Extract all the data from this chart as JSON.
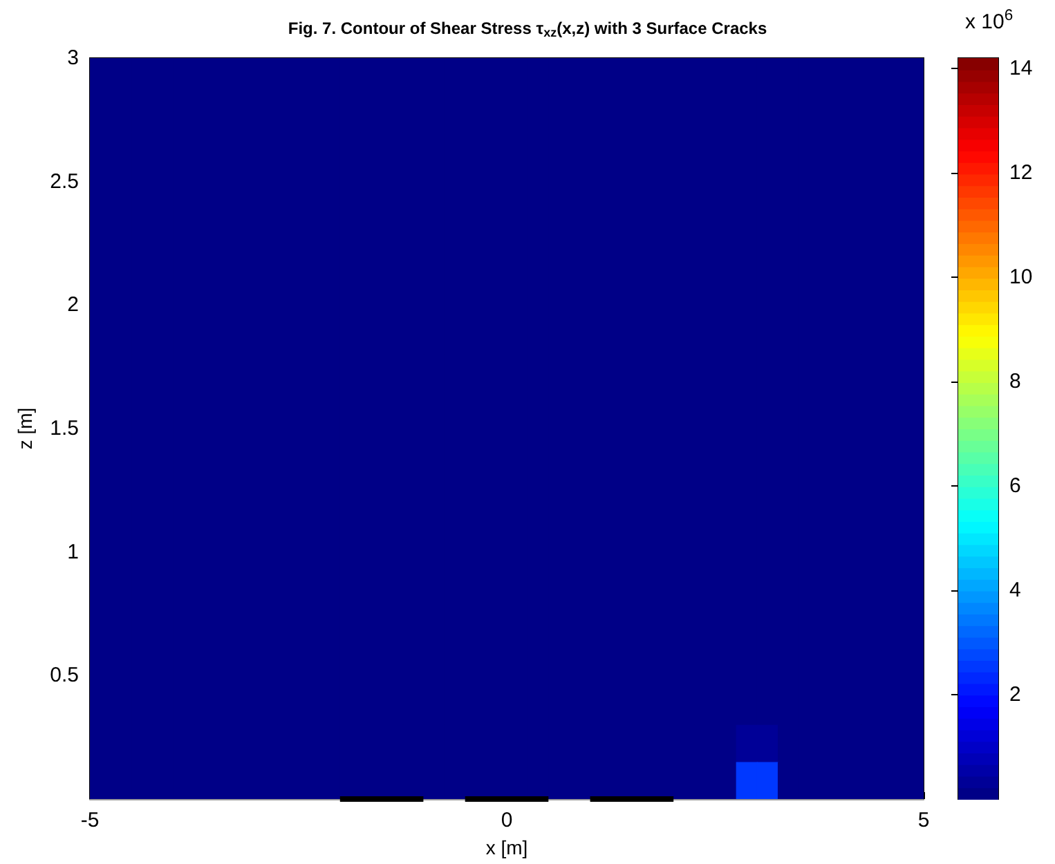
{
  "chart_data": {
    "type": "heatmap",
    "title": "Fig. 7. Contour of Shear Stress τ$_{xz}$(x,z) with 3 Surface Cracks",
    "xlabel": "x [m]",
    "ylabel": "z [m]",
    "clabel": "x 10$^{6}$",
    "xlim": [
      -5,
      5
    ],
    "xticks": [
      -5,
      0,
      5
    ],
    "ylim": [
      0,
      3
    ],
    "yticks": [
      0.5,
      1,
      1.5,
      2,
      2.5,
      3
    ],
    "clim": [
      0,
      14.2
    ],
    "cticks": [
      2,
      4,
      6,
      8,
      10,
      12,
      14
    ],
    "x": [
      -4.875,
      -4.625,
      -4.375,
      -4.125,
      -3.875,
      -3.625,
      -3.375,
      -3.125,
      -2.875,
      -2.625,
      -2.375,
      -2.125,
      -1.875,
      -1.625,
      -1.375,
      -1.125,
      -0.875,
      -0.625,
      -0.375,
      -0.125,
      0.125,
      0.375,
      0.625,
      0.875,
      1.125,
      1.375,
      1.625,
      1.875,
      2.125,
      2.375,
      2.625,
      2.875,
      3.125,
      3.375,
      3.625,
      3.875,
      4.125,
      4.375,
      4.625,
      4.875
    ],
    "y": [
      2.925,
      2.775,
      2.625,
      2.475,
      2.325,
      2.175,
      2.025,
      1.875,
      1.725,
      1.575,
      1.425,
      1.275,
      1.125,
      0.975,
      0.825,
      0.675,
      0.525,
      0.375,
      0.225,
      0.075
    ],
    "cells": [
      [
        0,
        0,
        0,
        0,
        0,
        0,
        0,
        0,
        0,
        0,
        0,
        0,
        0,
        0,
        0,
        0,
        0,
        0,
        0,
        0,
        0,
        0,
        0,
        0,
        0,
        0,
        0,
        0,
        0,
        0,
        0,
        0,
        0,
        0,
        0,
        0,
        0,
        0,
        0,
        0
      ],
      [
        0,
        0,
        0,
        0,
        0,
        0,
        0,
        0,
        0,
        0,
        0,
        0,
        0,
        0,
        0,
        0,
        0,
        0,
        0,
        0,
        0,
        0,
        0,
        0,
        0,
        0,
        0,
        0,
        0,
        0,
        0,
        0,
        0,
        0,
        0,
        0,
        0,
        0,
        0,
        0
      ],
      [
        0,
        0,
        0,
        0,
        0,
        0,
        0,
        0,
        0,
        0,
        0,
        0,
        0,
        0,
        0,
        0,
        0,
        0,
        0,
        0,
        0,
        0,
        0,
        0,
        0,
        0,
        0,
        0,
        0,
        0,
        0,
        0,
        0,
        0,
        0,
        0,
        0,
        0,
        0,
        0
      ],
      [
        0,
        0,
        0,
        0,
        0,
        0,
        0,
        0,
        0,
        0,
        0,
        0,
        0,
        0,
        0,
        0,
        0,
        0,
        0,
        0,
        0,
        0,
        0,
        0,
        0,
        0,
        0,
        0,
        0,
        0,
        0,
        0,
        0,
        0,
        0,
        0,
        0,
        0,
        0,
        0
      ],
      [
        0,
        0,
        0,
        0,
        0,
        0,
        0,
        0,
        0,
        0,
        0,
        0,
        0,
        0,
        0,
        0,
        0,
        0,
        0,
        0,
        0,
        0,
        0,
        0,
        0,
        0,
        0,
        0,
        0,
        0,
        0,
        0,
        0,
        0,
        0,
        0,
        0,
        0,
        0,
        0
      ],
      [
        0,
        0,
        0,
        0,
        0,
        0,
        0,
        0,
        0,
        0,
        0,
        0,
        0,
        0,
        0,
        0,
        0,
        0,
        0,
        0,
        0,
        0,
        0,
        0,
        0,
        0,
        0,
        0,
        0,
        0,
        0,
        0,
        0,
        0,
        0,
        0,
        0,
        0,
        0,
        0
      ],
      [
        0,
        0,
        0,
        0,
        0,
        0,
        0,
        0,
        0,
        0,
        0,
        0,
        0,
        0,
        0,
        0,
        0,
        0,
        0,
        0,
        0,
        0,
        0,
        0,
        0,
        0,
        0,
        0,
        0,
        0,
        0,
        0,
        0,
        0,
        0,
        0,
        0,
        0,
        0,
        0
      ],
      [
        0,
        0,
        0,
        0,
        0,
        0,
        0,
        0,
        0,
        0,
        0,
        0,
        0,
        0,
        0,
        0,
        0,
        0,
        0,
        0,
        0,
        0,
        0,
        0,
        0,
        0,
        0,
        0,
        0,
        0,
        0,
        0,
        0,
        0,
        0,
        0,
        0,
        0,
        0,
        0
      ],
      [
        0,
        0,
        0,
        0,
        0,
        0,
        0,
        0,
        0,
        0,
        0,
        0,
        0,
        0,
        0,
        0,
        0,
        0,
        0,
        0,
        0,
        0,
        0,
        0,
        0,
        0,
        0,
        0,
        0,
        0,
        0,
        0,
        0,
        0,
        0,
        0,
        0,
        0,
        0,
        0
      ],
      [
        0,
        0,
        0,
        0,
        0,
        0,
        0,
        0,
        0,
        0,
        0,
        0,
        0,
        0,
        0,
        0,
        0,
        0,
        0,
        0,
        0,
        0,
        0,
        0,
        0,
        0,
        0,
        0,
        0,
        0,
        0,
        0,
        0,
        0,
        0,
        0,
        0,
        0,
        0,
        0
      ],
      [
        0,
        0,
        0,
        0,
        0,
        0,
        0,
        0,
        0,
        0,
        0,
        0,
        0,
        0,
        0,
        0,
        0,
        0,
        0,
        0,
        0,
        0,
        0,
        0,
        0,
        0,
        0,
        0,
        0,
        0,
        0,
        0,
        0,
        0,
        0,
        0,
        0,
        0,
        0,
        0
      ],
      [
        0,
        0,
        0,
        0,
        0,
        0,
        0,
        0,
        0,
        0,
        0,
        0,
        0,
        0,
        0,
        0,
        0,
        0,
        0,
        0,
        0,
        0,
        0,
        0,
        0,
        0,
        0,
        0,
        0,
        0,
        0,
        0,
        0,
        0,
        0,
        0,
        0,
        0,
        0,
        0
      ],
      [
        0,
        0,
        0,
        0,
        0,
        0,
        0,
        0,
        0,
        0,
        0,
        0,
        0,
        0,
        0,
        0,
        0,
        0,
        0,
        0,
        0,
        0,
        0,
        0,
        0,
        0,
        0,
        0,
        0,
        0,
        0,
        0,
        0,
        0,
        0,
        0,
        0,
        0,
        0,
        0
      ],
      [
        0,
        0,
        0,
        0,
        0,
        0,
        0,
        0,
        0,
        0,
        0,
        0,
        0,
        0,
        0,
        0,
        0,
        0,
        0,
        0,
        0,
        0,
        0,
        0,
        0,
        0,
        0,
        0,
        0,
        0,
        0,
        0,
        0,
        0,
        0,
        0,
        0,
        0,
        0,
        0
      ],
      [
        0,
        0,
        0,
        0,
        0,
        0,
        0,
        0,
        0,
        0,
        0,
        0,
        0,
        0,
        0,
        0,
        0,
        0,
        0,
        0,
        0,
        0,
        0,
        0,
        0,
        0,
        0,
        0,
        0,
        0,
        0,
        0,
        0,
        0,
        0,
        0,
        0,
        0,
        0,
        0
      ],
      [
        0,
        0,
        0,
        0,
        0,
        0,
        0,
        0,
        0,
        0,
        0,
        0,
        0,
        0,
        0,
        0,
        0,
        0,
        0,
        0,
        0,
        0,
        0,
        0,
        0,
        0,
        0,
        0,
        0,
        0,
        0,
        0,
        0,
        0,
        0,
        0,
        0,
        0,
        0,
        0
      ],
      [
        0,
        0,
        0,
        0,
        0,
        0,
        0,
        0,
        0,
        0,
        0,
        0,
        0,
        0,
        0,
        0,
        0,
        0,
        0,
        0,
        0,
        0,
        0,
        0,
        0,
        0,
        0,
        0,
        0,
        0,
        0,
        0,
        0,
        0,
        0,
        0,
        0,
        0,
        0,
        0
      ],
      [
        0,
        0,
        0,
        0,
        0,
        0,
        0,
        0,
        0,
        0,
        0,
        0,
        0,
        0,
        0,
        0,
        0,
        0,
        0,
        0,
        0,
        0,
        0,
        0,
        0,
        0,
        0,
        0,
        0,
        0,
        0,
        0.1,
        0.1,
        0,
        0,
        0,
        0,
        0,
        0,
        0
      ],
      [
        0,
        0,
        0,
        0,
        0,
        0,
        0,
        0,
        0,
        0,
        0,
        0,
        0,
        0,
        0,
        0,
        0,
        0,
        0,
        0,
        0,
        0,
        0,
        0,
        0,
        0,
        0,
        0,
        0,
        0,
        0.1,
        0.4,
        0.4,
        0.1,
        0,
        0,
        0,
        0,
        0,
        0
      ],
      [
        0,
        0,
        0,
        0,
        0,
        0,
        0,
        0,
        0,
        0,
        0,
        0,
        0,
        0,
        0,
        0,
        0,
        0,
        0,
        0,
        0,
        0,
        0,
        0,
        0,
        0,
        0,
        0,
        0,
        0,
        0.2,
        2.5,
        2.5,
        0.2,
        0,
        0,
        0,
        0,
        0,
        0
      ]
    ],
    "series": [
      {
        "type": "line",
        "color": "#000000",
        "x": [
          -2,
          -1
        ],
        "values": [
          0,
          0
        ]
      },
      {
        "type": "line",
        "color": "#000000",
        "x": [
          -0.5,
          0.5
        ],
        "values": [
          0,
          0
        ]
      },
      {
        "type": "line",
        "color": "#000000",
        "x": [
          1,
          2
        ],
        "values": [
          0,
          0
        ]
      }
    ]
  }
}
